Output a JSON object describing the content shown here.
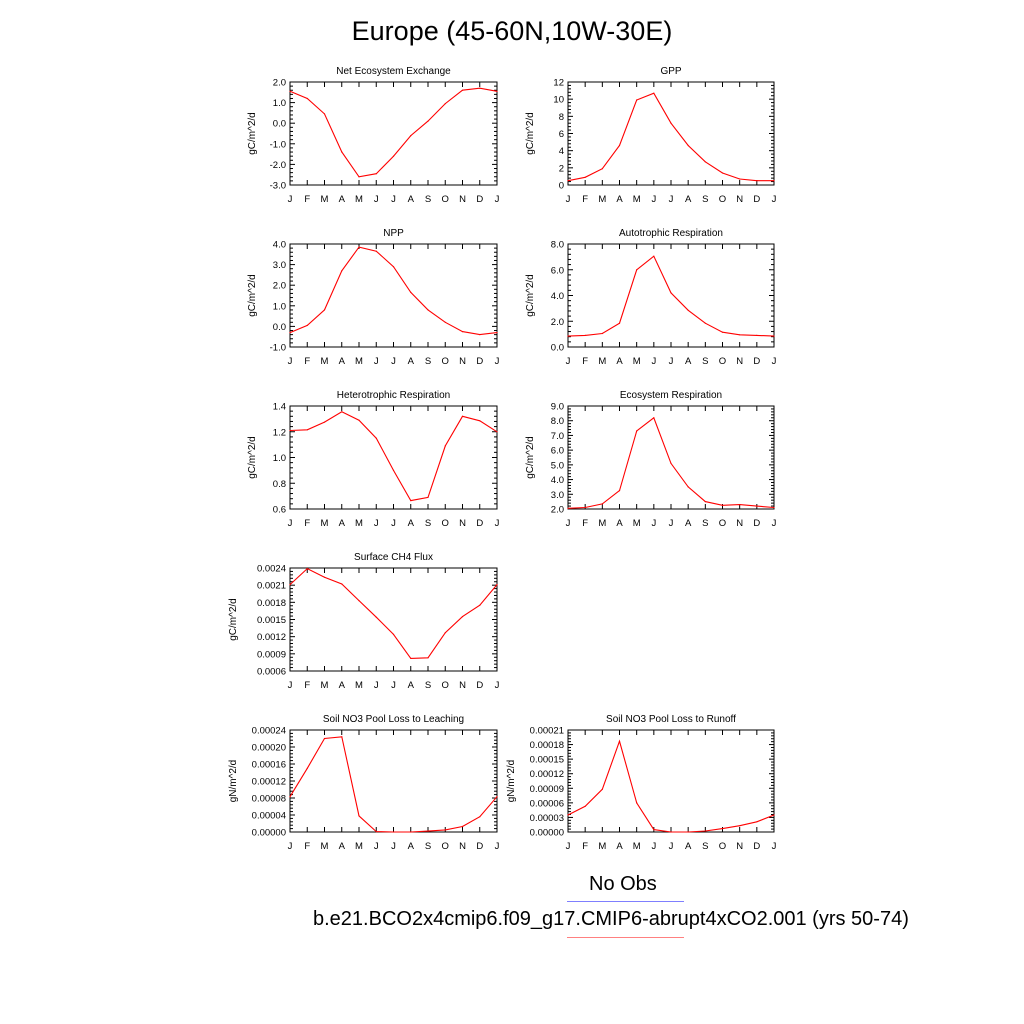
{
  "title": "Europe (45-60N,10W-30E)",
  "months": [
    "J",
    "F",
    "M",
    "A",
    "M",
    "J",
    "J",
    "A",
    "S",
    "O",
    "N",
    "D",
    "J"
  ],
  "legend": [
    {
      "label": "No Obs",
      "color": "#7f7fff"
    },
    {
      "label": "b.e21.BCO2x4cmip6.f09_g17.CMIP6-abrupt4xCO2.001 (yrs 50-74)",
      "color": "#ff8080"
    }
  ],
  "line_color": "#ff0000",
  "chart_data": [
    {
      "type": "line",
      "title": "Net Ecosystem Exchange",
      "ylabel": "gC/m^2/d",
      "ylim": [
        -3.0,
        2.0
      ],
      "yticks": [
        "-3.0",
        "-2.0",
        "-1.0",
        "0.0",
        "1.0",
        "2.0"
      ],
      "values": [
        1.55,
        1.2,
        0.45,
        -1.4,
        -2.6,
        -2.45,
        -1.6,
        -0.6,
        0.1,
        0.95,
        1.6,
        1.7,
        1.55
      ]
    },
    {
      "type": "line",
      "title": "GPP",
      "ylabel": "gC/m^2/d",
      "ylim": [
        0,
        12
      ],
      "yticks": [
        "0",
        "2",
        "4",
        "6",
        "8",
        "10",
        "12"
      ],
      "values": [
        0.5,
        0.9,
        1.9,
        4.6,
        9.9,
        10.7,
        7.2,
        4.6,
        2.7,
        1.4,
        0.7,
        0.5,
        0.5
      ]
    },
    {
      "type": "line",
      "title": "NPP",
      "ylabel": "gC/m^2/d",
      "ylim": [
        -1.0,
        4.0
      ],
      "yticks": [
        "-1.0",
        "0.0",
        "1.0",
        "2.0",
        "3.0",
        "4.0"
      ],
      "values": [
        -0.3,
        0.05,
        0.8,
        2.7,
        3.85,
        3.65,
        2.9,
        1.65,
        0.8,
        0.2,
        -0.25,
        -0.4,
        -0.3
      ]
    },
    {
      "type": "line",
      "title": "Autotrophic Respiration",
      "ylabel": "gC/m^2/d",
      "ylim": [
        0.0,
        8.0
      ],
      "yticks": [
        "0.0",
        "2.0",
        "4.0",
        "6.0",
        "8.0"
      ],
      "values": [
        0.85,
        0.9,
        1.05,
        1.85,
        6.0,
        7.05,
        4.2,
        2.85,
        1.85,
        1.15,
        0.95,
        0.9,
        0.85
      ]
    },
    {
      "type": "line",
      "title": "Heterotrophic Respiration",
      "ylabel": "gC/m^2/d",
      "ylim": [
        0.6,
        1.4
      ],
      "yticks": [
        "0.6",
        "0.8",
        "1.0",
        "1.2",
        "1.4"
      ],
      "values": [
        1.21,
        1.215,
        1.275,
        1.355,
        1.29,
        1.15,
        0.9,
        0.665,
        0.69,
        1.09,
        1.32,
        1.285,
        1.2
      ]
    },
    {
      "type": "line",
      "title": "Ecosystem Respiration",
      "ylabel": "gC/m^2/d",
      "ylim": [
        2.0,
        9.0
      ],
      "yticks": [
        "2.0",
        "3.0",
        "4.0",
        "5.0",
        "6.0",
        "7.0",
        "8.0",
        "9.0"
      ],
      "values": [
        2.05,
        2.1,
        2.35,
        3.25,
        7.3,
        8.2,
        5.1,
        3.5,
        2.5,
        2.25,
        2.3,
        2.2,
        2.1
      ]
    },
    {
      "type": "line",
      "title": "Surface CH4 Flux",
      "ylabel": "gC/m^2/d",
      "ylim": [
        0.0006,
        0.0024
      ],
      "yticks": [
        "0.0006",
        "0.0009",
        "0.0012",
        "0.0015",
        "0.0018",
        "0.0021",
        "0.0024"
      ],
      "values": [
        0.00211,
        0.00239,
        0.00224,
        0.00212,
        0.00183,
        0.00154,
        0.00124,
        0.00082,
        0.00083,
        0.00127,
        0.00155,
        0.00175,
        0.00211
      ]
    },
    {
      "type": "line",
      "title": "Soil NO3 Pool Loss to Leaching",
      "ylabel": "gN/m^2/d",
      "ylim": [
        0.0,
        0.00024
      ],
      "yticks": [
        "0.00000",
        "0.00004",
        "0.00008",
        "0.00012",
        "0.00016",
        "0.00020",
        "0.00024"
      ],
      "values": [
        8.3e-05,
        0.00015,
        0.00022,
        0.000224,
        3.8e-05,
        1e-06,
        0.0,
        0.0,
        2e-06,
        5e-06,
        1.3e-05,
        3.6e-05,
        8.3e-05
      ]
    },
    {
      "type": "line",
      "title": "Soil NO3 Pool Loss to Runoff",
      "ylabel": "gN/m^2/d",
      "ylim": [
        0.0,
        0.00021
      ],
      "yticks": [
        "0.00000",
        "0.00003",
        "0.00006",
        "0.00009",
        "0.00012",
        "0.00015",
        "0.00018",
        "0.00021"
      ],
      "values": [
        3.5e-05,
        5.3e-05,
        8.8e-05,
        0.000187,
        6e-05,
        5e-06,
        0.0,
        0.0,
        2e-06,
        7e-06,
        1.3e-05,
        2.1e-05,
        3.5e-05
      ]
    }
  ]
}
